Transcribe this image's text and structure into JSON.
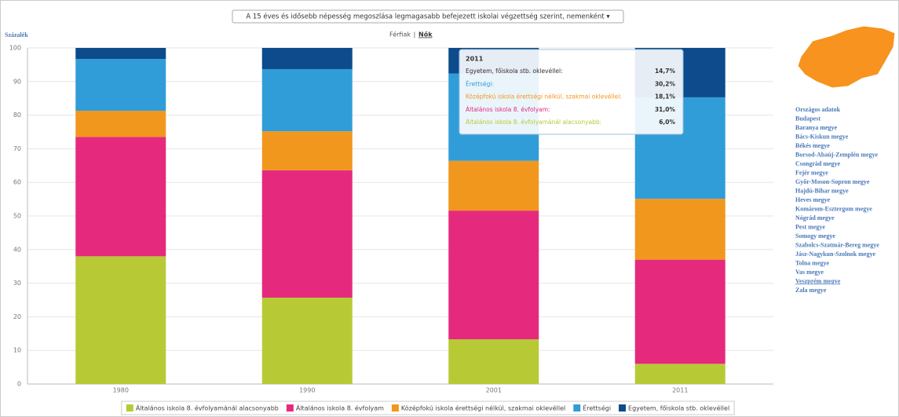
{
  "header": {
    "title": "A 15 éves és idősebb népesség megoszlása legmagasabb befejezett iskolai végzettség szerint, nemenként ▾",
    "toggle": [
      "Férfiak",
      "|",
      "Nők"
    ]
  },
  "chart_data": {
    "type": "bar",
    "stacked": true,
    "ylabel": "Százalék",
    "categories": [
      "1980",
      "1990",
      "2001",
      "2011"
    ],
    "series": [
      {
        "name": "Általános iskola 8. évfolyamánál alacsonyabb",
        "color": "#b7ca35",
        "values": [
          38,
          25.7,
          13.3,
          6.0
        ]
      },
      {
        "name": "Általános iskola 8. évfolyam",
        "color": "#e52a7e",
        "values": [
          35.5,
          37.9,
          38.3,
          31.0
        ]
      },
      {
        "name": "Középfokú iskola érettségi nélkül, szakmai oklevéllel",
        "color": "#f1971e",
        "values": [
          7.8,
          11.6,
          14.8,
          18.1
        ]
      },
      {
        "name": "Érettségi",
        "color": "#319dd8",
        "values": [
          15.4,
          18.5,
          26.0,
          30.2
        ]
      },
      {
        "name": "Egyetem, főiskola stb. oklevéllel",
        "color": "#0d4b8c",
        "values": [
          3.3,
          6.3,
          7.6,
          14.7
        ]
      }
    ],
    "ylim": [
      0,
      100
    ],
    "yticks": [
      0,
      10,
      20,
      30,
      40,
      50,
      60,
      70,
      80,
      90,
      100
    ],
    "grid": true,
    "legend": "bottom"
  },
  "tooltip": {
    "title": "2011",
    "rows": [
      {
        "label": "Egyetem, főiskola stb. oklevéllel:",
        "value": "14,7%"
      },
      {
        "label": "Érettségi:",
        "value": "30,2%"
      },
      {
        "label": "Középfokú iskola érettségi nélkül, szakmai oklevéllel:",
        "value": "18,1%"
      },
      {
        "label": "Általános iskola 8. évfolyam:",
        "value": "31,0%"
      },
      {
        "label": "Általános iskola 8. évfolyamánál alacsonyabb:",
        "value": "6,0%"
      }
    ]
  },
  "sidebar": {
    "regions": [
      "Országos adatok",
      "Budapest",
      "Baranya megye",
      "Bács-Kiskun megye",
      "Békés megye",
      "Borsod-Abaúj-Zemplén megye",
      "Csongrád megye",
      "Fejér megye",
      "Győr-Moson-Sopron megye",
      "Hajdú-Bihar megye",
      "Heves megye",
      "Komárom-Esztergom megye",
      "Nógrád megye",
      "Pest megye",
      "Somogy megye",
      "Szabolcs-Szatmár-Bereg megye",
      "Jász-Nagykun-Szolnok megye",
      "Tolna megye",
      "Vas megye",
      "Veszprém megye",
      "Zala megye"
    ],
    "active": "Veszprém megye"
  }
}
